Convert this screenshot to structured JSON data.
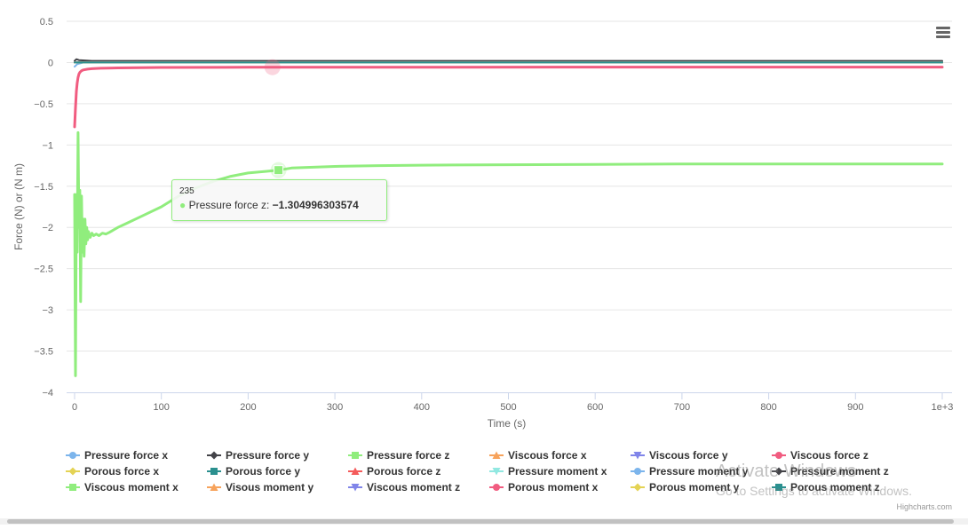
{
  "chart_data": {
    "type": "line",
    "title": "",
    "xlabel": "Time (s)",
    "ylabel": "Force (N) or (N m)",
    "xlim": [
      0,
      1000
    ],
    "ylim": [
      -4,
      0.5
    ],
    "x_ticks": [
      0,
      100,
      200,
      300,
      400,
      500,
      600,
      700,
      800,
      900,
      1000
    ],
    "x_tick_labels": [
      "0",
      "100",
      "200",
      "300",
      "400",
      "500",
      "600",
      "700",
      "800",
      "900",
      "1e+3"
    ],
    "y_ticks": [
      0.5,
      0,
      -0.5,
      -1,
      -1.5,
      -2,
      -2.5,
      -3,
      -3.5,
      -4
    ],
    "y_tick_labels": [
      "0.5",
      "0",
      "−0.5",
      "−1",
      "−1.5",
      "−2",
      "−2.5",
      "−3",
      "−3.5",
      "−4"
    ],
    "grid": "horizontal",
    "legend_position": "bottom",
    "series": [
      {
        "name": "Pressure force x",
        "color": "#7cb5ec",
        "marker": "circle",
        "x": [
          0,
          3,
          10,
          50,
          200,
          1000
        ],
        "y": [
          -0.05,
          -0.02,
          0.0,
          0.01,
          0.01,
          0.01
        ]
      },
      {
        "name": "Pressure force y",
        "color": "#434348",
        "marker": "diamond",
        "x": [
          0,
          2,
          5,
          20,
          100,
          1000
        ],
        "y": [
          0.02,
          0.04,
          0.03,
          0.02,
          0.02,
          0.02
        ]
      },
      {
        "name": "Pressure force z",
        "color": "#90ed7d",
        "marker": "square",
        "x": [
          0,
          1,
          2,
          3,
          4,
          5,
          6,
          7,
          8,
          9,
          10,
          11,
          12,
          13,
          14,
          15,
          16,
          18,
          20,
          22,
          25,
          28,
          32,
          36,
          40,
          50,
          60,
          80,
          100,
          120,
          140,
          160,
          180,
          200,
          220,
          235,
          250,
          300,
          350,
          400,
          500,
          600,
          700,
          800,
          900,
          1000
        ],
        "y": [
          -1.6,
          -3.8,
          -1.6,
          -2.3,
          -0.85,
          -2.0,
          -1.55,
          -2.9,
          -1.62,
          -2.3,
          -1.9,
          -2.35,
          -1.9,
          -2.2,
          -2.0,
          -2.15,
          -2.05,
          -2.12,
          -2.07,
          -2.1,
          -2.08,
          -2.1,
          -2.07,
          -2.08,
          -2.06,
          -2.0,
          -1.95,
          -1.85,
          -1.75,
          -1.62,
          -1.52,
          -1.44,
          -1.38,
          -1.34,
          -1.32,
          -1.304996303574,
          -1.28,
          -1.26,
          -1.25,
          -1.245,
          -1.24,
          -1.235,
          -1.23,
          -1.23,
          -1.23,
          -1.23
        ]
      },
      {
        "name": "Viscous force x",
        "color": "#f7a35c",
        "marker": "triangle",
        "x": [
          0,
          1000
        ],
        "y": [
          0.0,
          0.0
        ]
      },
      {
        "name": "Viscous force y",
        "color": "#8085e9",
        "marker": "triangle-down",
        "x": [
          0,
          1000
        ],
        "y": [
          0.0,
          0.0
        ]
      },
      {
        "name": "Viscous force z",
        "color": "#f15c80",
        "marker": "circle",
        "x": [
          0,
          1,
          2,
          3,
          4,
          5,
          6,
          8,
          10,
          15,
          20,
          30,
          50,
          100,
          200,
          400,
          700,
          1000
        ],
        "y": [
          -0.78,
          -0.55,
          -0.35,
          -0.25,
          -0.18,
          -0.14,
          -0.12,
          -0.1,
          -0.09,
          -0.08,
          -0.075,
          -0.07,
          -0.065,
          -0.06,
          -0.058,
          -0.057,
          -0.056,
          -0.055
        ]
      },
      {
        "name": "Porous force x",
        "color": "#e4d354",
        "marker": "diamond",
        "x": [
          0,
          1000
        ],
        "y": [
          0.0,
          0.0
        ]
      },
      {
        "name": "Porous force y",
        "color": "#2b908f",
        "marker": "square",
        "x": [
          0,
          1000
        ],
        "y": [
          0.0,
          0.0
        ]
      },
      {
        "name": "Porous force z",
        "color": "#f45b5b",
        "marker": "triangle",
        "x": [
          0,
          1000
        ],
        "y": [
          0.0,
          0.0
        ]
      },
      {
        "name": "Pressure moment x",
        "color": "#91e8e1",
        "marker": "triangle-down",
        "x": [
          0,
          1000
        ],
        "y": [
          0.0,
          0.0
        ]
      },
      {
        "name": "Pressure moment y",
        "color": "#7cb5ec",
        "marker": "circle",
        "x": [
          0,
          1000
        ],
        "y": [
          0.0,
          0.0
        ]
      },
      {
        "name": "Pressure moment z",
        "color": "#434348",
        "marker": "diamond",
        "x": [
          0,
          1000
        ],
        "y": [
          0.0,
          0.0
        ]
      },
      {
        "name": "Viscous moment x",
        "color": "#90ed7d",
        "marker": "square",
        "x": [
          0,
          1000
        ],
        "y": [
          0.0,
          0.0
        ]
      },
      {
        "name": "Visous moment y",
        "color": "#f7a35c",
        "marker": "triangle",
        "x": [
          0,
          1000
        ],
        "y": [
          0.0,
          0.0
        ]
      },
      {
        "name": "Viscous moment z",
        "color": "#8085e9",
        "marker": "triangle-down",
        "x": [
          0,
          1000
        ],
        "y": [
          0.0,
          0.0
        ]
      },
      {
        "name": "Porous moment x",
        "color": "#f15c80",
        "marker": "circle",
        "x": [
          0,
          1000
        ],
        "y": [
          0.0,
          0.0
        ]
      },
      {
        "name": "Porous moment y",
        "color": "#e4d354",
        "marker": "diamond",
        "x": [
          0,
          1000
        ],
        "y": [
          0.0,
          0.0
        ]
      },
      {
        "name": "Porous moment z",
        "color": "#2b908f",
        "marker": "square",
        "x": [
          0,
          1000
        ],
        "y": [
          0.0,
          0.0
        ]
      }
    ],
    "hover_marker": {
      "series": "Viscous force z",
      "x": 228,
      "y": -0.057
    },
    "tooltip": {
      "header": "235",
      "series_name": "Pressure force z",
      "value": "−1.304996303574",
      "x": 235,
      "y": -1.304996303574
    }
  },
  "ui": {
    "menu_icon": "hamburger-menu-icon",
    "credits": "Highcharts.com",
    "watermark_title": "Activate Windows",
    "watermark_sub": "Go to Settings to activate Windows."
  }
}
